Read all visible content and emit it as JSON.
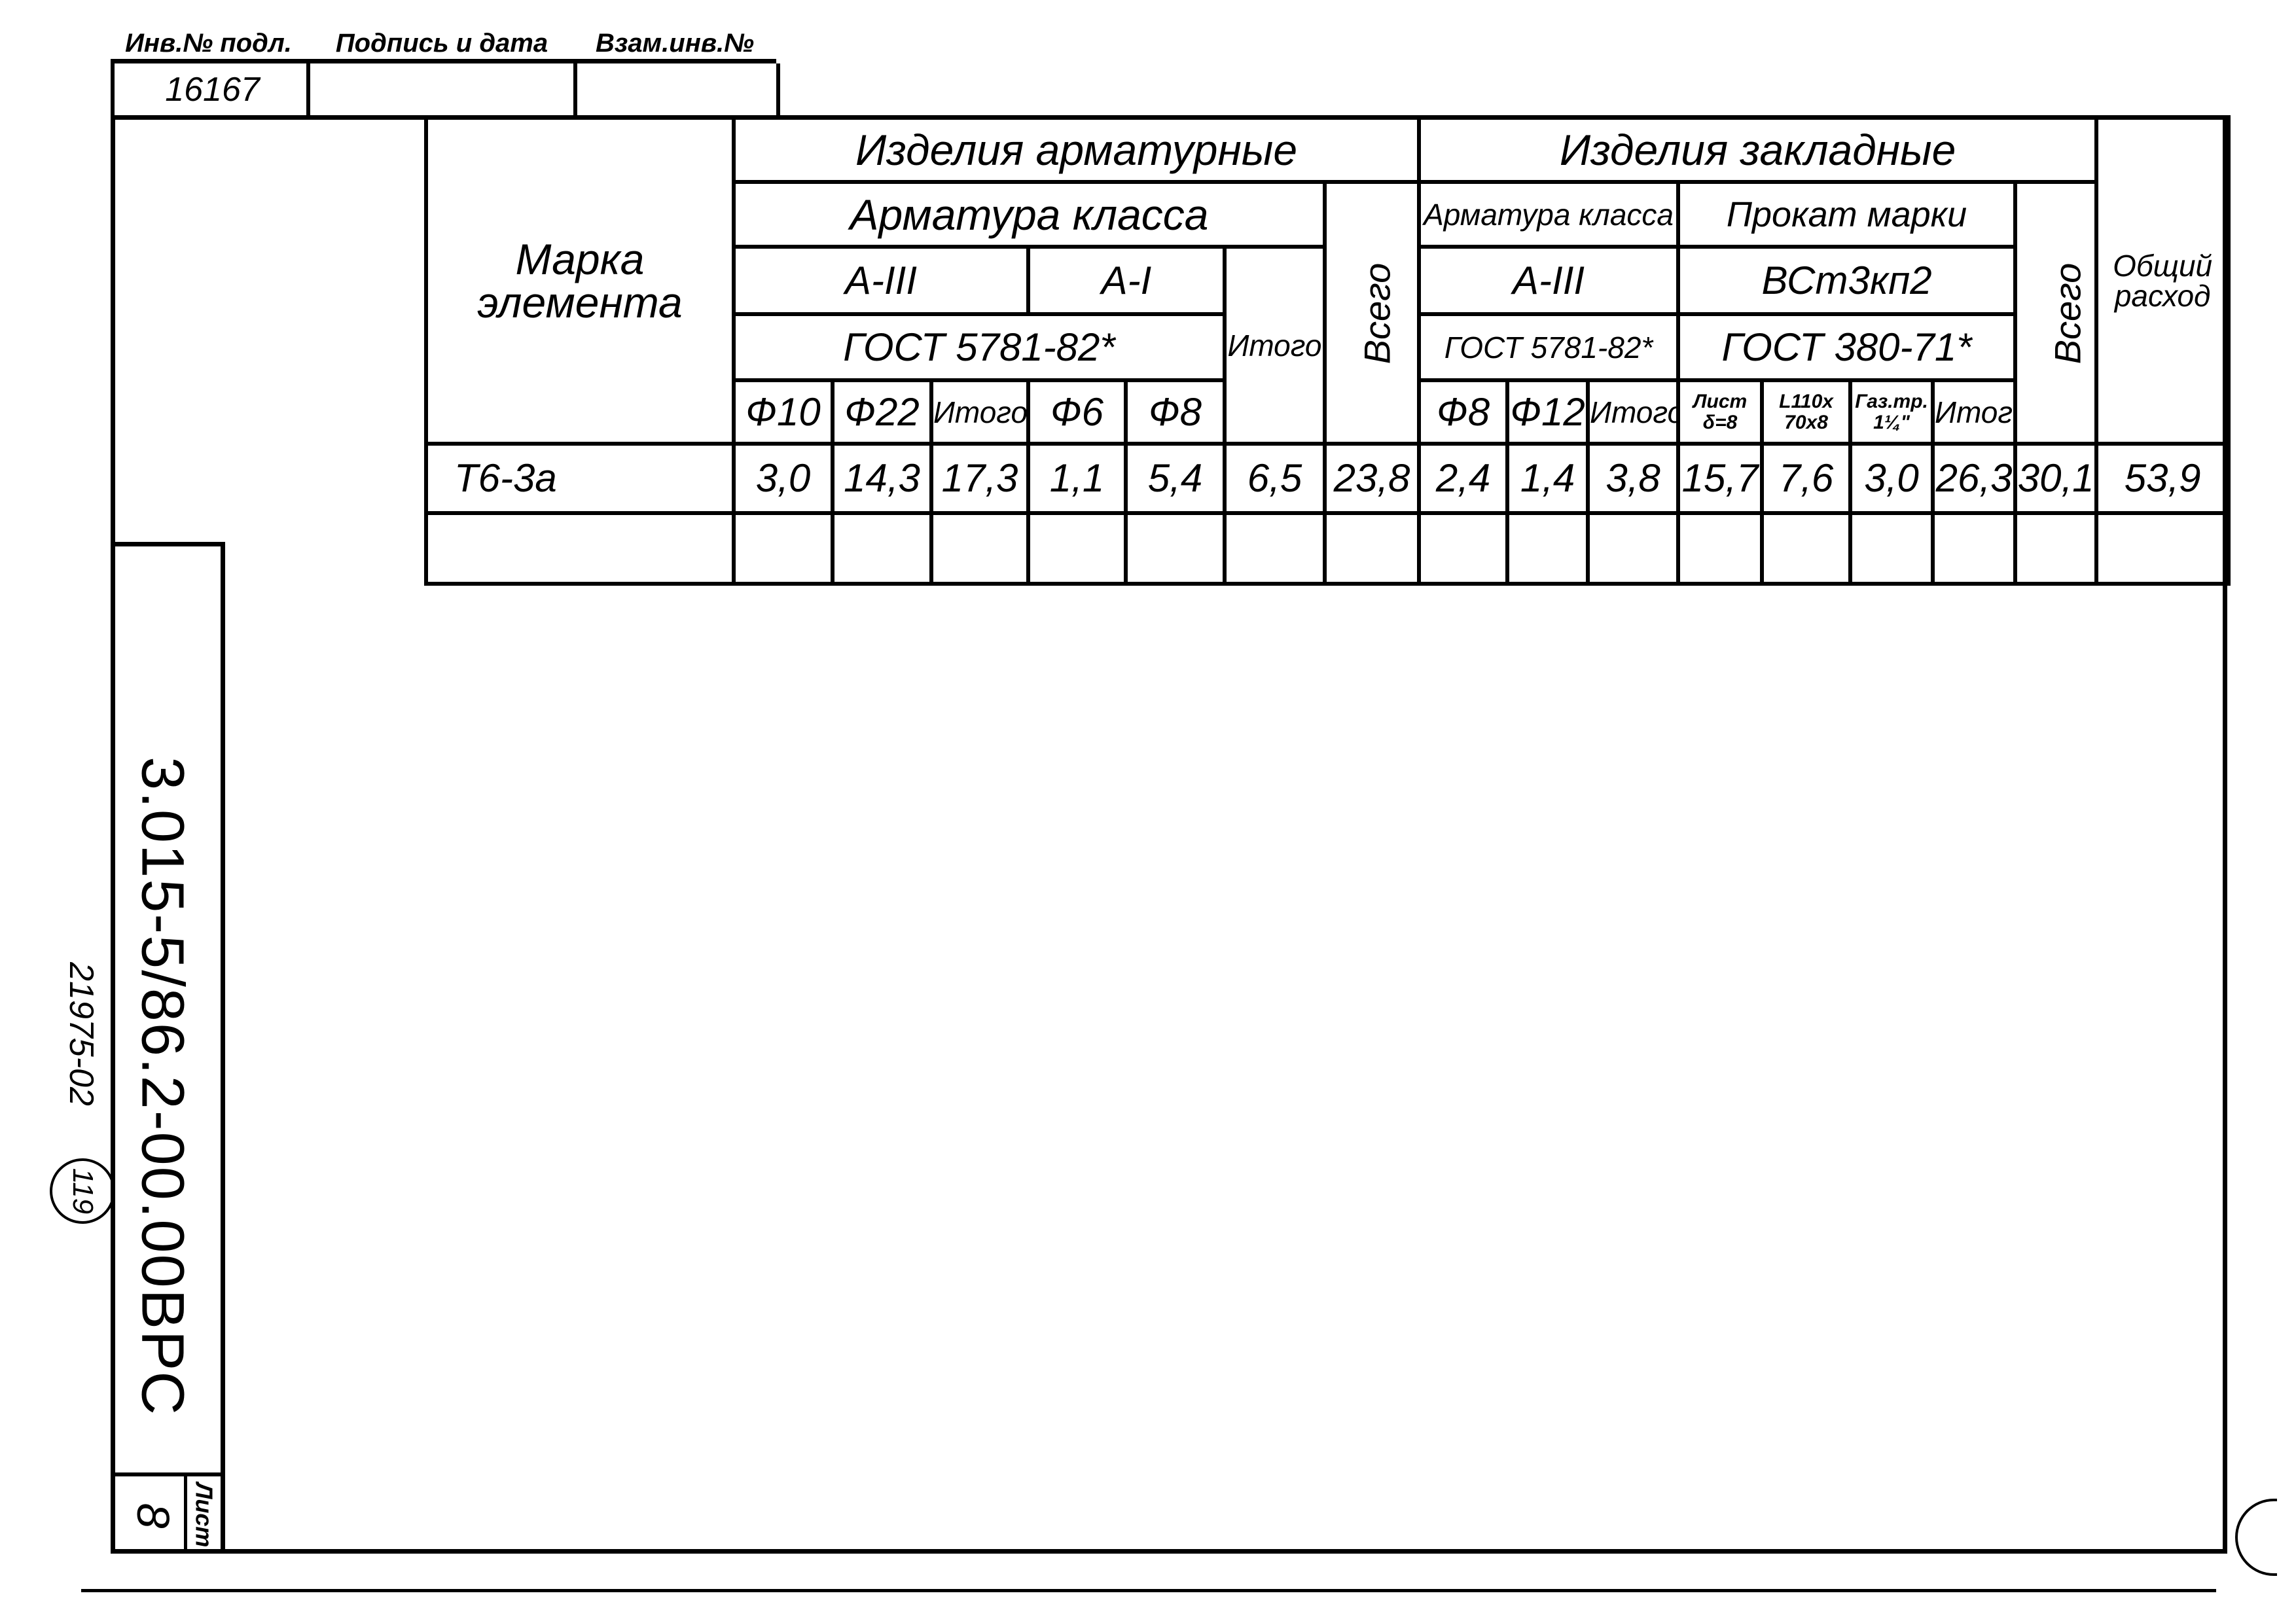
{
  "title_strip": {
    "headers": [
      "Инв.№ подл.",
      "Подпись и дата",
      "Взам.инв.№"
    ],
    "values": [
      "16167",
      "",
      ""
    ]
  },
  "side": {
    "document_code": "3.015-5/86.2-00.00ВРС",
    "inventory": "21975-02",
    "circled_number": "119",
    "sheet_label": "Лист",
    "sheet_number": "8"
  },
  "table": {
    "mark_header": "Марка элемента",
    "total_header": "Общий расход",
    "reinforcement": {
      "title": "Изделия арматурные",
      "class_label": "Арматура класса",
      "class_a3": "А-III",
      "class_a1": "А-I",
      "gost": "ГОСТ 5781-82*",
      "subtotal": "Итого",
      "total": "Всего",
      "columns": [
        "Ф10",
        "Ф22",
        "Итого",
        "Ф6",
        "Ф8"
      ]
    },
    "embedded": {
      "title": "Изделия закладные",
      "class_label": "Арматура класса",
      "class_a3": "А-III",
      "gost_rebar": "ГОСТ 5781-82*",
      "rolled_label": "Прокат марки",
      "rolled_grade": "ВСт3кп2",
      "gost_rolled": "ГОСТ 380-71*",
      "total": "Всего",
      "columns": [
        "Ф8",
        "Ф12",
        "Итого",
        "Лист δ=8",
        "L110x 70x8",
        "Газ.тр. 1¼\"",
        "Итого"
      ]
    },
    "rows": [
      {
        "mark": "Т6-3а",
        "values": [
          "3,0",
          "14,3",
          "17,3",
          "1,1",
          "5,4",
          "6,5",
          "23,8",
          "2,4",
          "1,4",
          "3,8",
          "15,7",
          "7,6",
          "3,0",
          "26,3",
          "30,1",
          "53,9"
        ]
      },
      {
        "mark": "",
        "values": [
          "",
          "",
          "",
          "",
          "",
          "",
          "",
          "",
          "",
          "",
          "",
          "",
          "",
          "",
          "",
          ""
        ]
      }
    ]
  }
}
